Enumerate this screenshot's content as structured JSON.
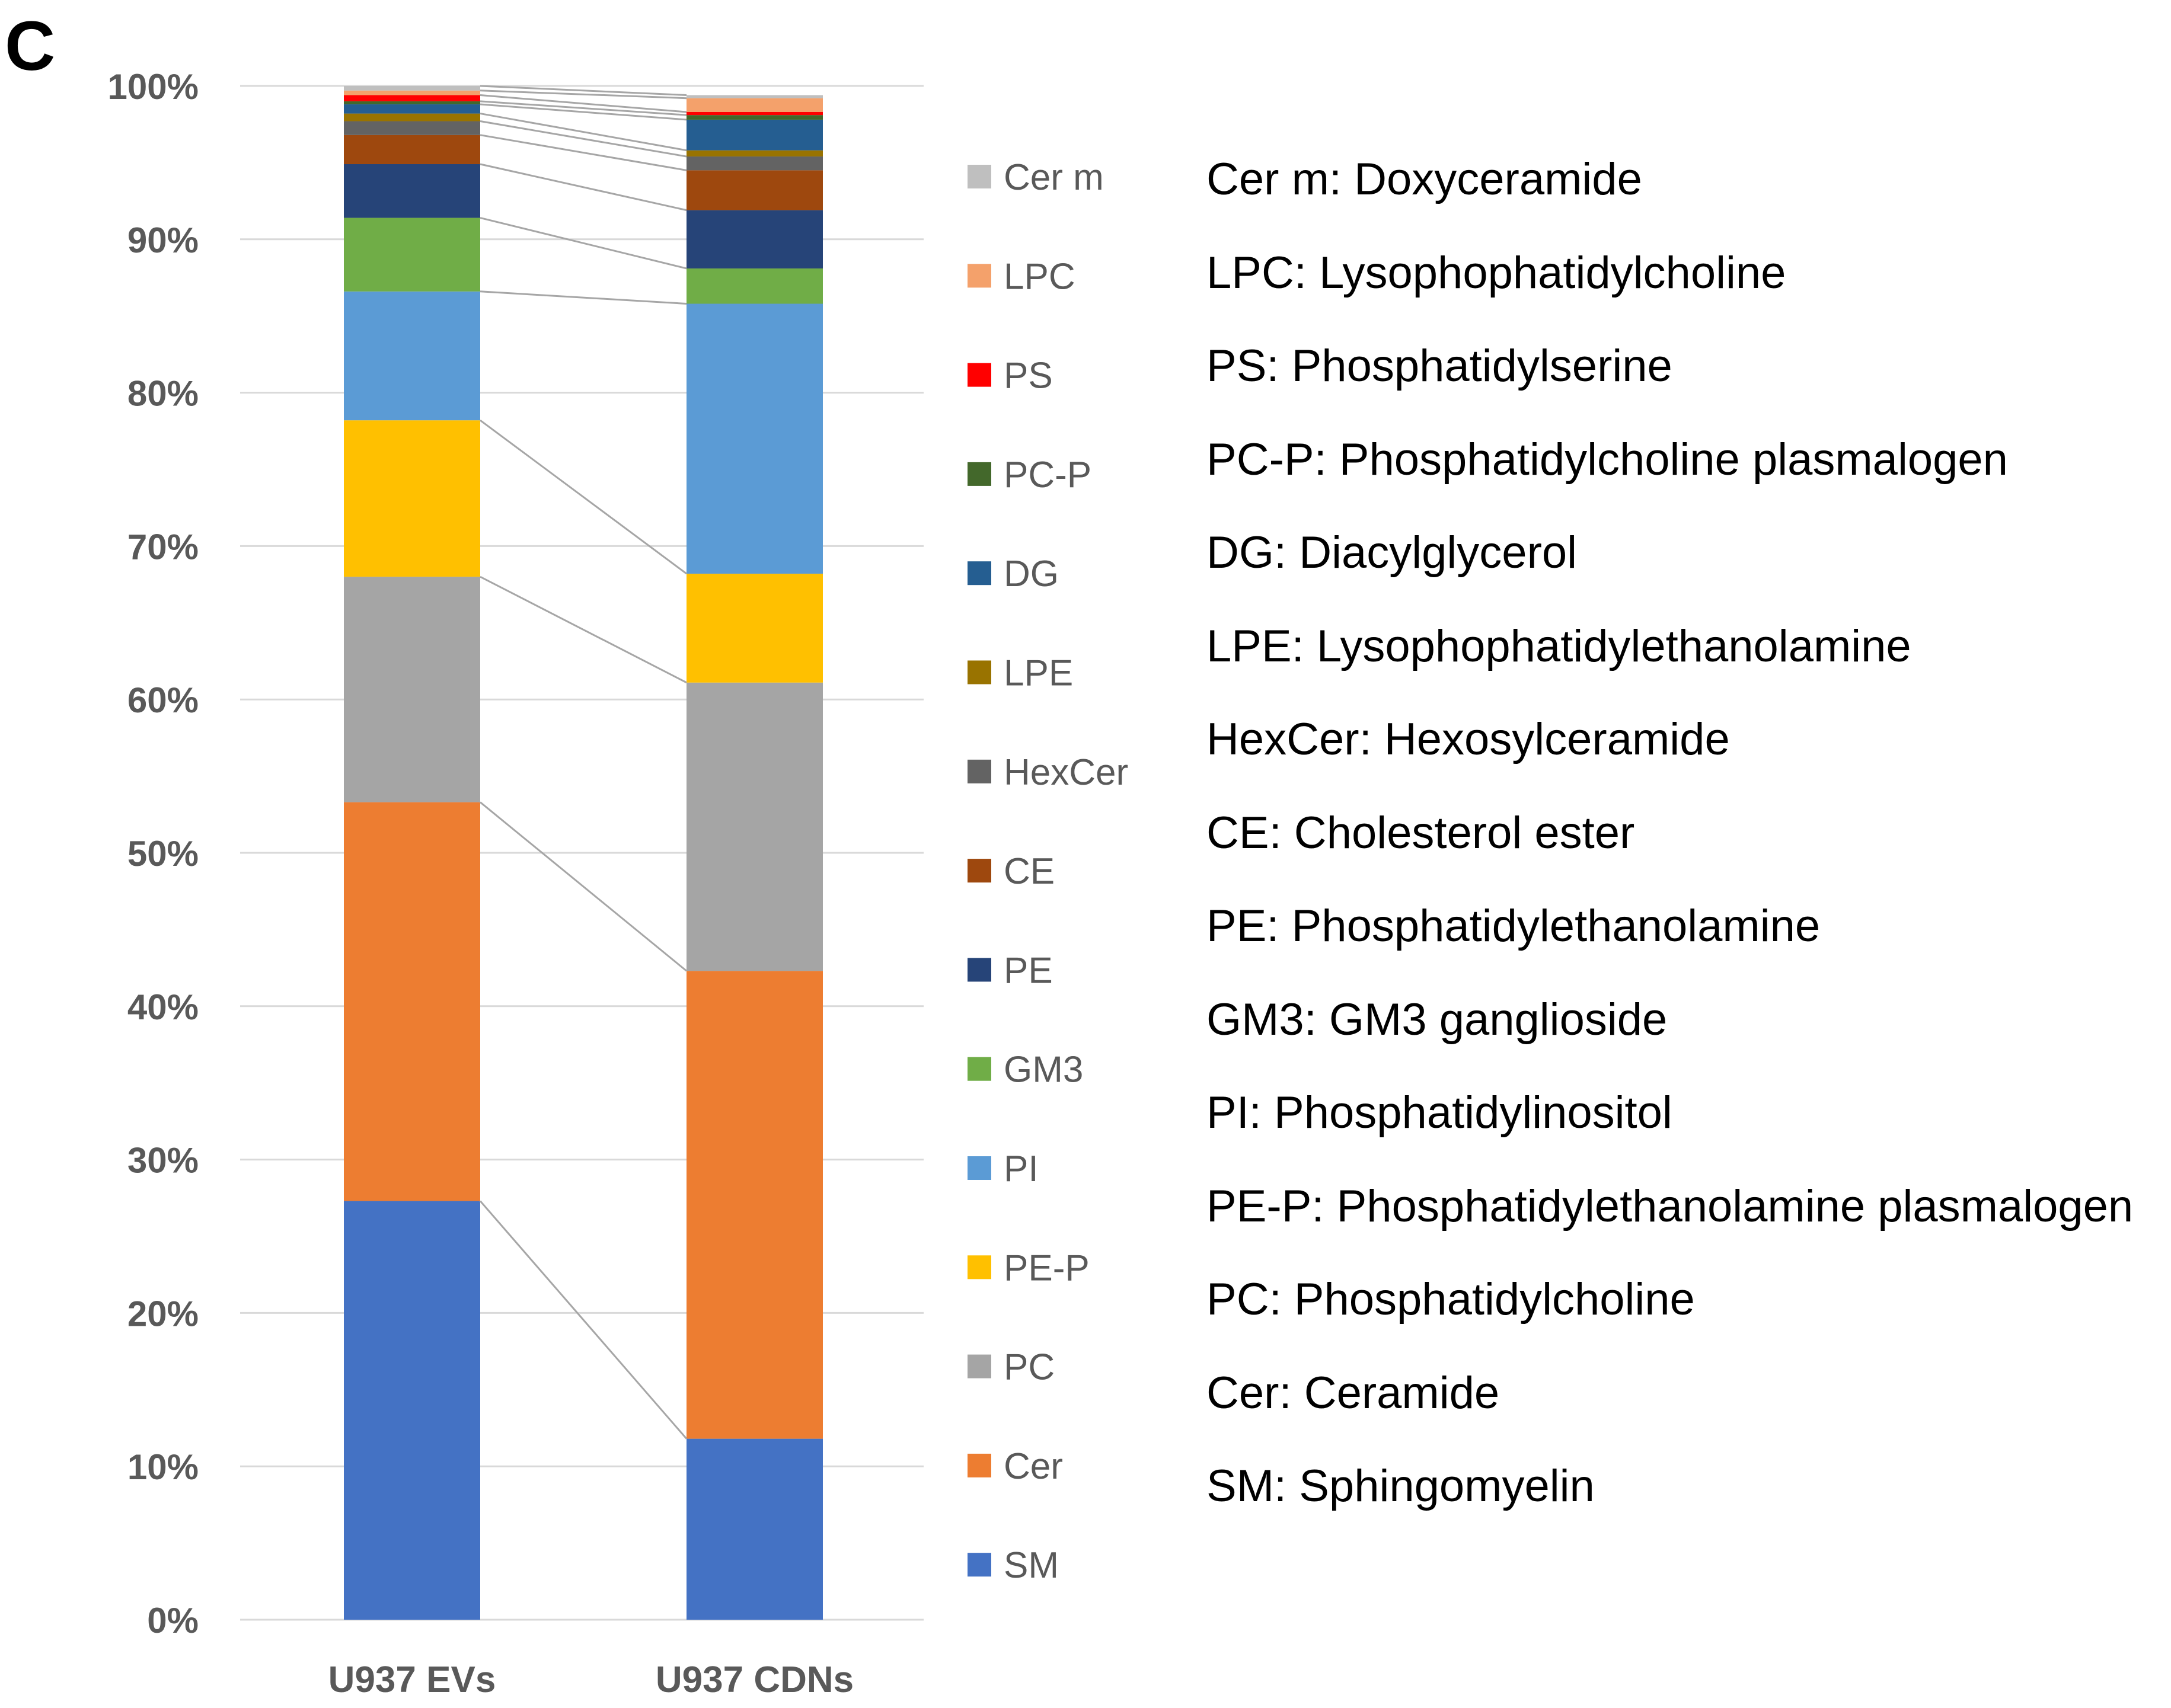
{
  "panel_label": "C",
  "chart_data": {
    "type": "bar",
    "stacked": true,
    "percent_stacked": true,
    "title": "",
    "xlabel": "",
    "ylabel": "",
    "ylim": [
      0,
      100
    ],
    "yticks": [
      "0%",
      "10%",
      "20%",
      "30%",
      "40%",
      "50%",
      "60%",
      "70%",
      "80%",
      "90%",
      "100%"
    ],
    "grid": true,
    "legend_position": "right",
    "categories": [
      "U937 EVs",
      "U937 CDNs"
    ],
    "series": [
      {
        "name": "SM",
        "color": "#4472C4",
        "values": [
          27.3,
          11.8
        ]
      },
      {
        "name": "Cer",
        "color": "#ED7D31",
        "values": [
          26.0,
          30.5
        ]
      },
      {
        "name": "PC",
        "color": "#A5A5A5",
        "values": [
          14.7,
          18.8
        ]
      },
      {
        "name": "PE-P",
        "color": "#FFC000",
        "values": [
          10.2,
          7.1
        ]
      },
      {
        "name": "PI",
        "color": "#5B9BD5",
        "values": [
          8.4,
          17.6
        ]
      },
      {
        "name": "GM3",
        "color": "#70AD47",
        "values": [
          4.8,
          2.3
        ]
      },
      {
        "name": "PE",
        "color": "#264478",
        "values": [
          3.5,
          3.8
        ]
      },
      {
        "name": "CE",
        "color": "#9E480E",
        "values": [
          1.9,
          2.6
        ]
      },
      {
        "name": "HexCer",
        "color": "#636363",
        "values": [
          0.9,
          0.9
        ]
      },
      {
        "name": "LPE",
        "color": "#997300",
        "values": [
          0.5,
          0.4
        ]
      },
      {
        "name": "DG",
        "color": "#255E91",
        "values": [
          0.6,
          2.0
        ]
      },
      {
        "name": "PC-P",
        "color": "#43682B",
        "values": [
          0.2,
          0.3
        ]
      },
      {
        "name": "PS",
        "color": "#FF0000",
        "values": [
          0.4,
          0.2
        ]
      },
      {
        "name": "LPC",
        "color": "#F4A16B",
        "values": [
          0.3,
          0.9
        ]
      },
      {
        "name": "Cer m",
        "color": "#BFBFBF",
        "values": [
          0.3,
          0.2
        ]
      }
    ]
  },
  "abbreviations": [
    "Cer m: Doxyceramide",
    "LPC: Lysophophatidylcholine",
    "PS: Phosphatidylserine",
    "PC-P: Phosphatidylcholine plasmalogen",
    "DG: Diacylglycerol",
    "LPE: Lysophophatidylethanolamine",
    "HexCer: Hexosylceramide",
    "CE: Cholesterol ester",
    "PE: Phosphatidylethanolamine",
    "GM3: GM3 ganglioside",
    "PI: Phosphatidylinositol",
    "PE-P: Phosphatidylethanolamine plasmalogen",
    "PC: Phosphatidylcholine",
    "Cer: Ceramide",
    "SM: Sphingomyelin"
  ]
}
